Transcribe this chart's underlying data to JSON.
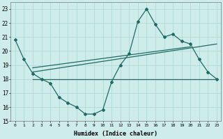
{
  "xlabel": "Humidex (Indice chaleur)",
  "ylabel": "",
  "xlim": [
    -0.5,
    23.5
  ],
  "ylim": [
    15,
    23.5
  ],
  "yticks": [
    15,
    16,
    17,
    18,
    19,
    20,
    21,
    22,
    23
  ],
  "xticks": [
    0,
    1,
    2,
    3,
    4,
    5,
    6,
    7,
    8,
    9,
    10,
    11,
    12,
    13,
    14,
    15,
    16,
    17,
    18,
    19,
    20,
    21,
    22,
    23
  ],
  "bg_color": "#ceecea",
  "grid_color": "#b2d9d5",
  "line_color": "#1f6b64",
  "curve_x": [
    0,
    1,
    2,
    3,
    4,
    5,
    6,
    7,
    8,
    9,
    10,
    11,
    12,
    13,
    14,
    15,
    16,
    17,
    18,
    19,
    20,
    21,
    22,
    23
  ],
  "curve_y": [
    20.8,
    19.4,
    18.4,
    18.0,
    17.7,
    16.7,
    16.3,
    16.0,
    15.5,
    15.5,
    15.8,
    17.8,
    19.0,
    19.8,
    22.1,
    23.0,
    21.9,
    21.0,
    21.2,
    20.7,
    20.5,
    19.4,
    18.5,
    18.0
  ],
  "flat_line_x": [
    2,
    23
  ],
  "flat_line_y": [
    18.0,
    18.0
  ],
  "reg_line_x": [
    2,
    23
  ],
  "reg_line_y": [
    18.5,
    20.5
  ],
  "reg_line2_x": [
    2,
    20
  ],
  "reg_line2_y": [
    18.8,
    20.3
  ]
}
